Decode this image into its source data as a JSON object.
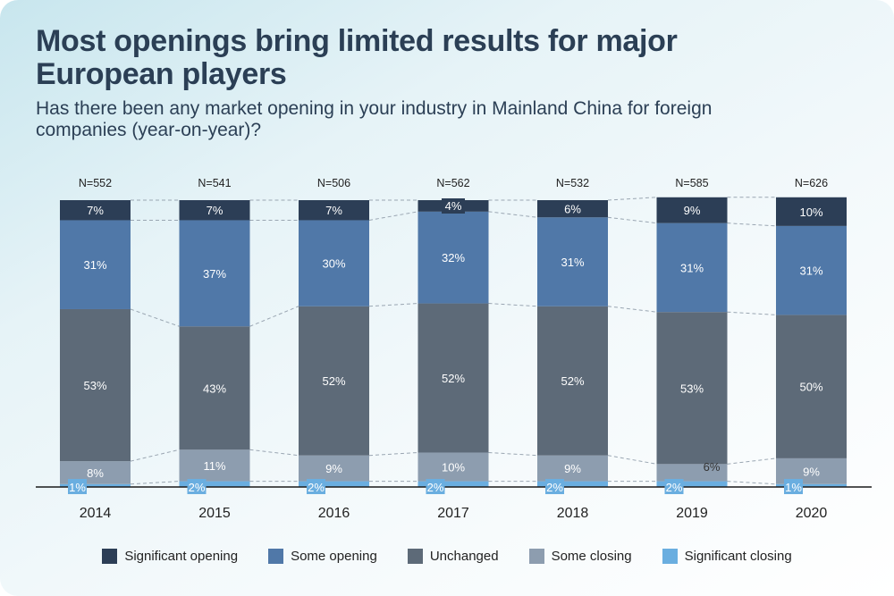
{
  "title": "Most openings bring limited results for major European players",
  "subtitle": "Has there been any market opening in your industry in Mainland China for foreign companies (year-on-year)?",
  "chart_data": {
    "type": "bar",
    "stacked": true,
    "categories": [
      "2014",
      "2015",
      "2016",
      "2017",
      "2018",
      "2019",
      "2020"
    ],
    "n_labels": [
      "N=552",
      "N=541",
      "N=506",
      "N=562",
      "N=532",
      "N=585",
      "N=626"
    ],
    "series": [
      {
        "name": "Significant closing",
        "color": "#6aaee0",
        "values": [
          1,
          2,
          2,
          2,
          2,
          2,
          1
        ]
      },
      {
        "name": "Some closing",
        "color": "#8d9daf",
        "values": [
          8,
          11,
          9,
          10,
          9,
          6,
          9
        ]
      },
      {
        "name": "Unchanged",
        "color": "#5d6a78",
        "values": [
          53,
          43,
          52,
          52,
          52,
          53,
          50
        ]
      },
      {
        "name": "Some opening",
        "color": "#5078a8",
        "values": [
          31,
          37,
          30,
          32,
          31,
          31,
          31
        ]
      },
      {
        "name": "Significant opening",
        "color": "#2c3e56",
        "values": [
          7,
          7,
          7,
          4,
          6,
          9,
          10
        ]
      }
    ],
    "value_suffix": "%",
    "ylim": [
      0,
      100
    ],
    "legend_position": "bottom",
    "legend_order": [
      "Significant opening",
      "Some opening",
      "Unchanged",
      "Some closing",
      "Significant closing"
    ]
  }
}
